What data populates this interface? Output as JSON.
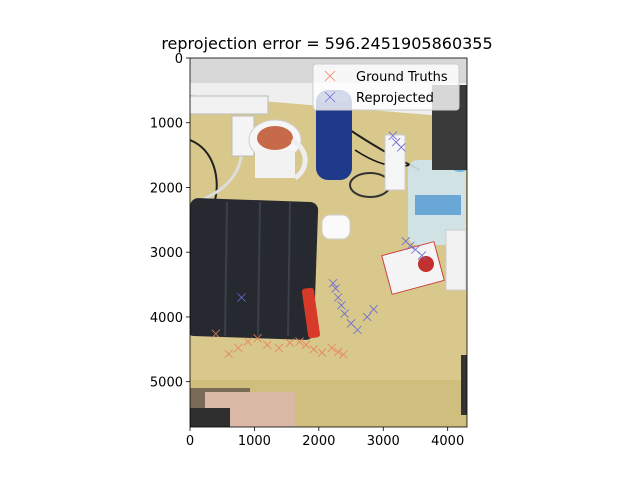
{
  "chart_data": {
    "type": "scatter",
    "title": "reprojection error = 596.2451905860355",
    "xlim": [
      0,
      4300
    ],
    "ylim": [
      5700,
      0
    ],
    "x_ticks": [
      0,
      1000,
      2000,
      3000,
      4000
    ],
    "y_ticks": [
      0,
      1000,
      2000,
      3000,
      4000,
      5000
    ],
    "background": "photo of desk (wood surface, black tablet, white mug, blue bottle, water bottle)",
    "legend": {
      "position": "top-right"
    },
    "series": [
      {
        "name": "Ground Truths",
        "marker": "x",
        "color": "#e8825a",
        "points": [
          [
            400,
            4260
          ],
          [
            600,
            4570
          ],
          [
            750,
            4480
          ],
          [
            900,
            4380
          ],
          [
            1050,
            4330
          ],
          [
            1200,
            4430
          ],
          [
            1380,
            4480
          ],
          [
            1550,
            4400
          ],
          [
            1700,
            4380
          ],
          [
            1800,
            4430
          ],
          [
            1920,
            4500
          ],
          [
            2050,
            4550
          ],
          [
            2200,
            4480
          ],
          [
            2300,
            4540
          ],
          [
            2380,
            4580
          ]
        ]
      },
      {
        "name": "Reprojected",
        "marker": "x",
        "color": "#6a6ad8",
        "points": [
          [
            3150,
            1200
          ],
          [
            3200,
            1300
          ],
          [
            3280,
            1380
          ],
          [
            3350,
            2830
          ],
          [
            3420,
            2900
          ],
          [
            3500,
            2960
          ],
          [
            3600,
            3050
          ],
          [
            2220,
            3480
          ],
          [
            2260,
            3560
          ],
          [
            2300,
            3700
          ],
          [
            2350,
            3820
          ],
          [
            2400,
            3950
          ],
          [
            2500,
            4100
          ],
          [
            2600,
            4200
          ],
          [
            2750,
            4000
          ],
          [
            2850,
            3880
          ],
          [
            800,
            3700
          ]
        ]
      }
    ]
  }
}
